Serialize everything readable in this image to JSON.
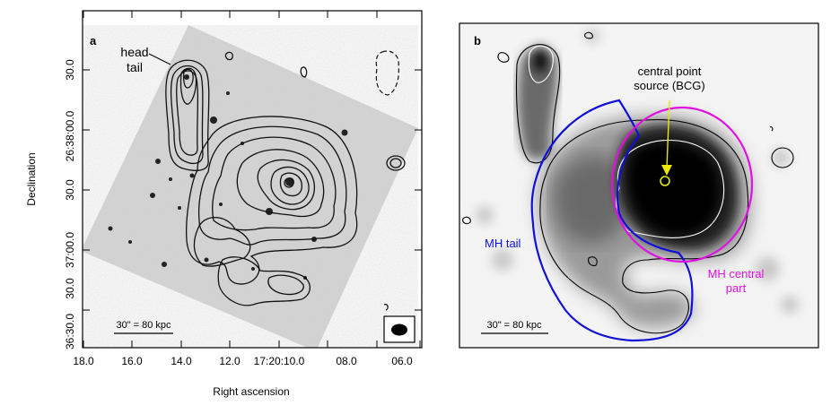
{
  "panel_a": {
    "letter": "a",
    "annot_head": "head",
    "annot_tail": "tail",
    "scale_label": "30\" = 80 kpc",
    "xlabel": "Right ascension",
    "ylabel": "Declination",
    "x_ticks": [
      "18.0",
      "16.0",
      "14.0",
      "12.0",
      "17:20:10.0",
      "08.0",
      "06.0"
    ],
    "y_ticks": [
      "30.0",
      "26:38:00.0",
      "30.0",
      "37:00.0",
      "30.0",
      "36:30.0"
    ]
  },
  "panel_b": {
    "letter": "b",
    "annot_central": [
      "central point",
      "source (BCG)"
    ],
    "annot_tail": "MH tail",
    "annot_mhcentral": [
      "MH central",
      "part"
    ],
    "scale_label": "30\" = 80 kpc",
    "colors": {
      "mh_tail": "#1010d8",
      "mh_central": "#e010e0",
      "bcg": "#e8e800"
    }
  }
}
